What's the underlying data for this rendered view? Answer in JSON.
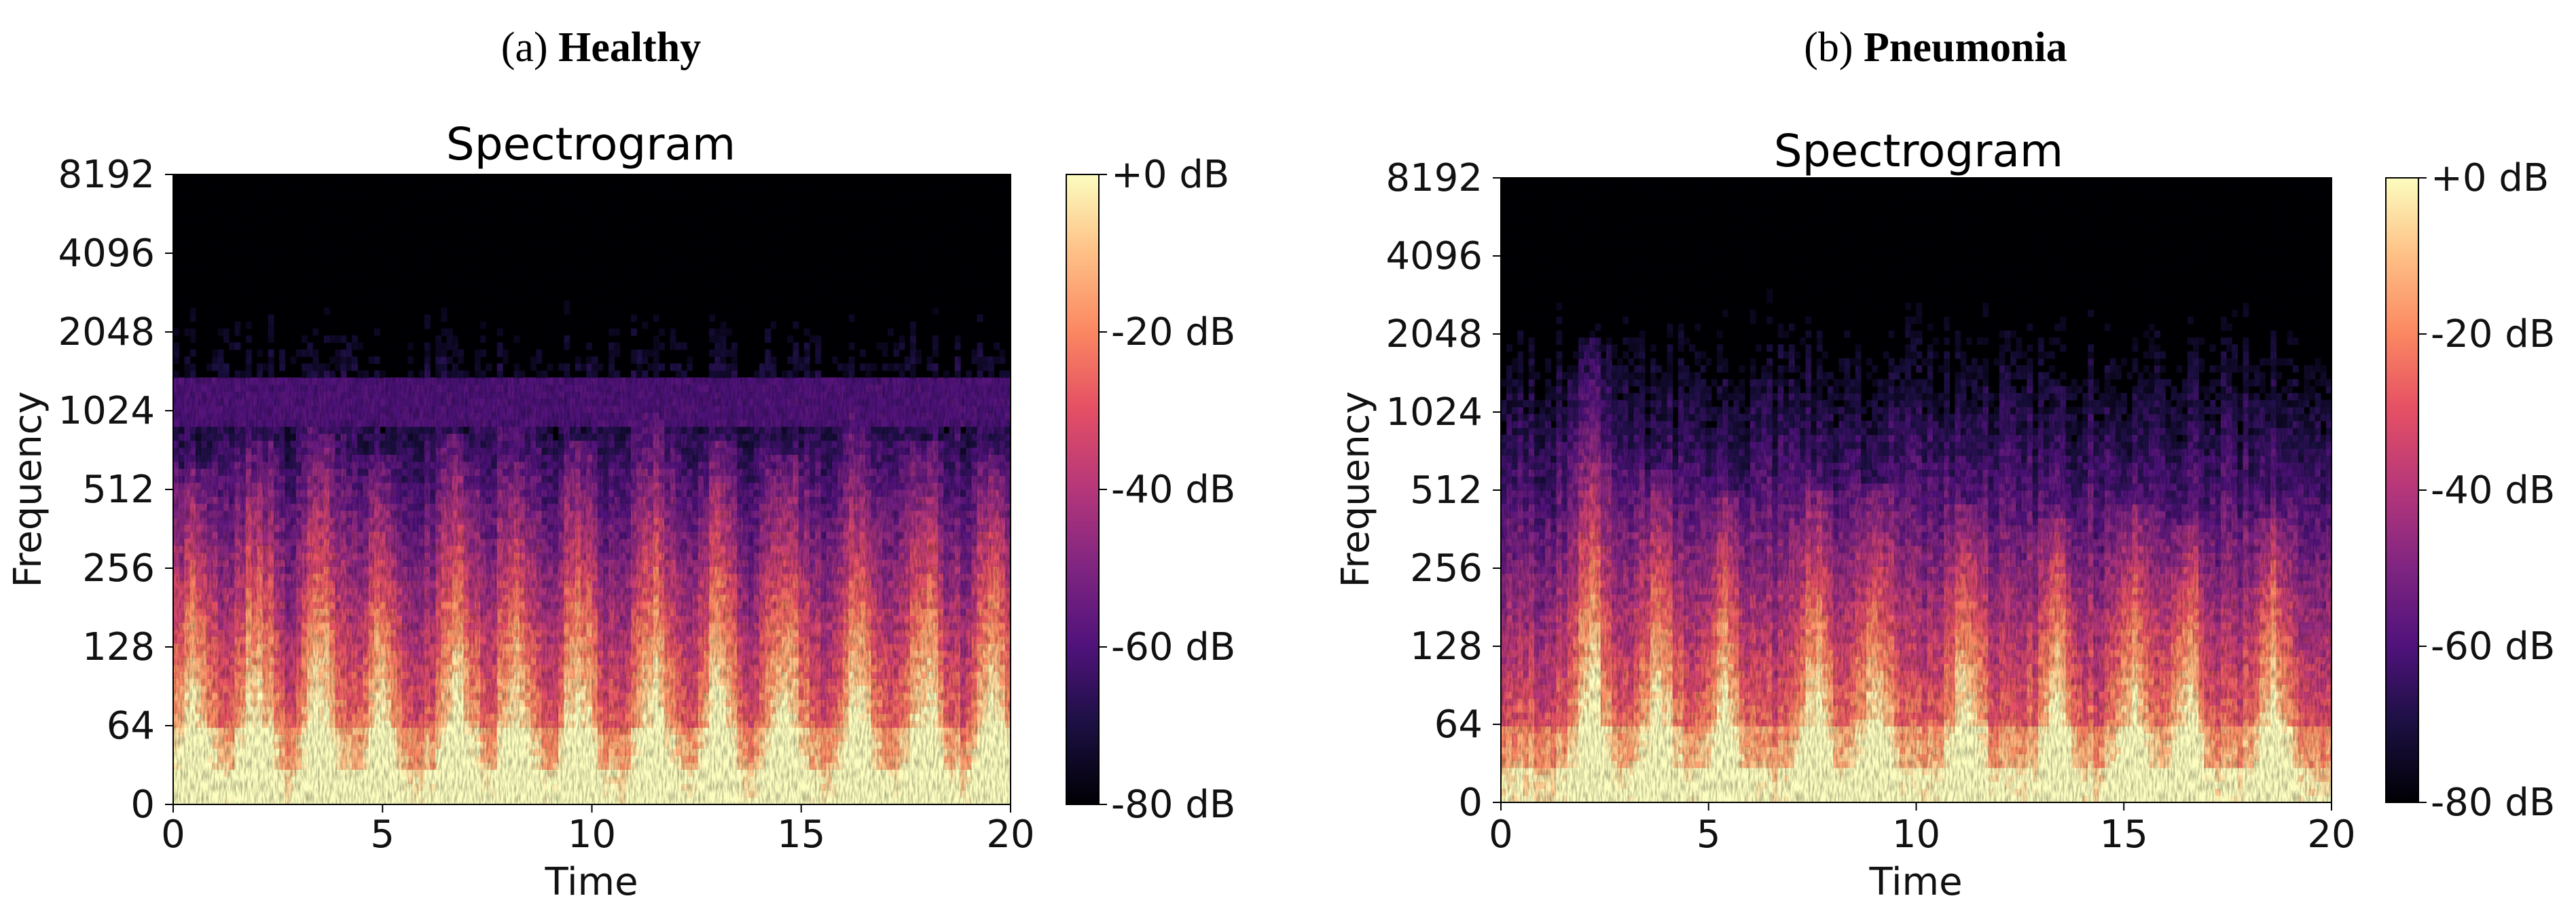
{
  "panels": [
    {
      "panel_letter": "(a)",
      "panel_name": "Healthy"
    },
    {
      "panel_letter": "(b)",
      "panel_name": "Pneumonia"
    }
  ],
  "chart_data": [
    {
      "type": "heatmap",
      "title": "Spectrogram",
      "xlabel": "Time",
      "ylabel": "Frequency",
      "x_ticks": [
        0,
        5,
        10,
        15,
        20
      ],
      "xlim": [
        0,
        20
      ],
      "y_ticks": [
        0,
        64,
        128,
        256,
        512,
        1024,
        2048,
        4096,
        8192
      ],
      "y_scale": "symlog",
      "colorbar": {
        "colormap": "magma",
        "range_db": [
          -80,
          0
        ],
        "ticks": [
          "+0 dB",
          "-20 dB",
          "-40 dB",
          "-60 dB",
          "-80 dB"
        ]
      },
      "energy_profile": {
        "band_edge_hz": 1100,
        "peak_times_s": [
          0.5,
          2.0,
          3.5,
          5.0,
          6.8,
          8.2,
          9.7,
          11.5,
          13.0,
          14.6,
          16.4,
          18.0,
          19.6
        ],
        "peak_upper_hz": [
          600,
          800,
          900,
          700,
          850,
          900,
          800,
          1024,
          800,
          700,
          1000,
          800,
          700
        ]
      }
    },
    {
      "type": "heatmap",
      "title": "Spectrogram",
      "xlabel": "Time",
      "ylabel": "Frequency",
      "x_ticks": [
        0,
        5,
        10,
        15,
        20
      ],
      "xlim": [
        0,
        20
      ],
      "y_ticks": [
        0,
        64,
        128,
        256,
        512,
        1024,
        2048,
        4096,
        8192
      ],
      "y_scale": "symlog",
      "colorbar": {
        "colormap": "magma",
        "range_db": [
          -80,
          0
        ],
        "ticks": [
          "+0 dB",
          "-20 dB",
          "-40 dB",
          "-60 dB",
          "-80 dB"
        ]
      },
      "energy_profile": {
        "band_edge_hz": 0,
        "peak_times_s": [
          2.2,
          3.8,
          5.4,
          7.6,
          9.0,
          11.2,
          13.4,
          15.2,
          16.5,
          18.6
        ],
        "peak_upper_hz": [
          2048,
          600,
          512,
          500,
          550,
          450,
          400,
          450,
          380,
          400
        ]
      }
    }
  ]
}
